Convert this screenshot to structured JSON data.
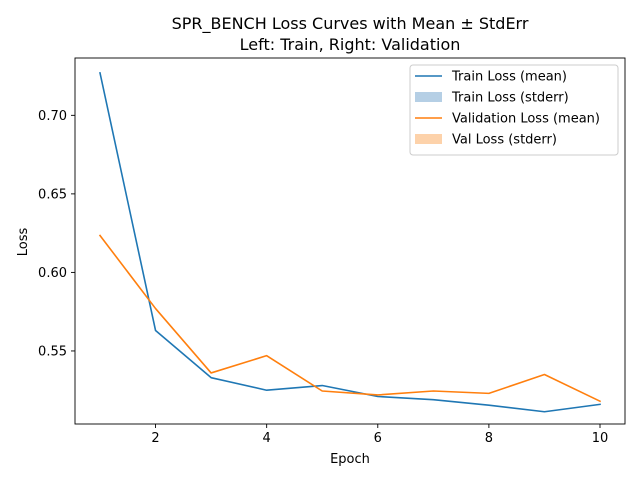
{
  "chart_data": {
    "type": "line",
    "title_line1": "SPR_BENCH Loss Curves with Mean ± StdErr",
    "title_line2": "Left: Train, Right: Validation",
    "xlabel": "Epoch",
    "ylabel": "Loss",
    "x": [
      1,
      2,
      3,
      4,
      5,
      6,
      7,
      8,
      9,
      10
    ],
    "xlim": [
      0.55,
      10.45
    ],
    "ylim": [
      0.5035,
      0.7365
    ],
    "xticks": [
      2,
      4,
      6,
      8,
      10
    ],
    "yticks": [
      0.55,
      0.6,
      0.65,
      0.7
    ],
    "ytick_labels": [
      "0.55",
      "0.60",
      "0.65",
      "0.70"
    ],
    "grid": false,
    "legend_position": "top-right",
    "series": [
      {
        "name": "Train Loss (mean)",
        "color": "#1f77b4",
        "values": [
          0.727,
          0.563,
          0.533,
          0.525,
          0.528,
          0.521,
          0.519,
          0.5155,
          0.5113,
          0.516
        ]
      },
      {
        "name": "Validation Loss (mean)",
        "color": "#ff7f0e",
        "values": [
          0.6235,
          0.577,
          0.536,
          0.547,
          0.5245,
          0.522,
          0.5245,
          0.523,
          0.535,
          0.518
        ]
      }
    ],
    "legend": [
      {
        "label": "Train Loss (mean)",
        "kind": "line",
        "color": "#1f77b4"
      },
      {
        "label": "Train Loss (stderr)",
        "kind": "patch",
        "color": "#b5cfe5"
      },
      {
        "label": "Validation Loss (mean)",
        "kind": "line",
        "color": "#ff7f0e"
      },
      {
        "label": "Val Loss (stderr)",
        "kind": "patch",
        "color": "#fdd2aa"
      }
    ]
  }
}
